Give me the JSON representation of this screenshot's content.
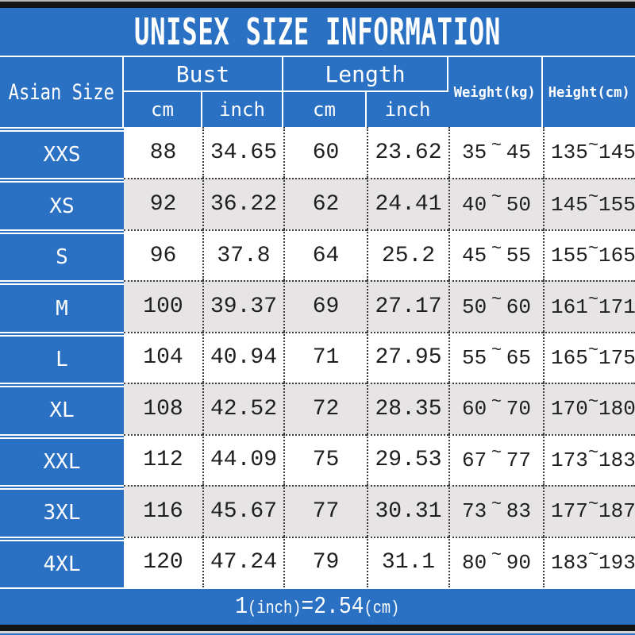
{
  "title": "UNISEX SIZE INFORMATION",
  "header": {
    "size_column": "Asian Size",
    "bust": "Bust",
    "length": "Length",
    "weight": "Weight(kg)",
    "height": "Height(cm)",
    "unit_cm": "cm",
    "unit_inch": "inch"
  },
  "range_separator": "~",
  "rows": [
    {
      "size": "XXS",
      "bust_cm": "88",
      "bust_inch": "34.65",
      "length_cm": "60",
      "length_inch": "23.62",
      "weight_min": "35",
      "weight_max": "45",
      "height_min": "135",
      "height_max": "145"
    },
    {
      "size": "XS",
      "bust_cm": "92",
      "bust_inch": "36.22",
      "length_cm": "62",
      "length_inch": "24.41",
      "weight_min": "40",
      "weight_max": "50",
      "height_min": "145",
      "height_max": "155"
    },
    {
      "size": "S",
      "bust_cm": "96",
      "bust_inch": "37.8",
      "length_cm": "64",
      "length_inch": "25.2",
      "weight_min": "45",
      "weight_max": "55",
      "height_min": "155",
      "height_max": "165"
    },
    {
      "size": "M",
      "bust_cm": "100",
      "bust_inch": "39.37",
      "length_cm": "69",
      "length_inch": "27.17",
      "weight_min": "50",
      "weight_max": "60",
      "height_min": "161",
      "height_max": "171"
    },
    {
      "size": "L",
      "bust_cm": "104",
      "bust_inch": "40.94",
      "length_cm": "71",
      "length_inch": "27.95",
      "weight_min": "55",
      "weight_max": "65",
      "height_min": "165",
      "height_max": "175"
    },
    {
      "size": "XL",
      "bust_cm": "108",
      "bust_inch": "42.52",
      "length_cm": "72",
      "length_inch": "28.35",
      "weight_min": "60",
      "weight_max": "70",
      "height_min": "170",
      "height_max": "180"
    },
    {
      "size": "XXL",
      "bust_cm": "112",
      "bust_inch": "44.09",
      "length_cm": "75",
      "length_inch": "29.53",
      "weight_min": "67",
      "weight_max": "77",
      "height_min": "173",
      "height_max": "183"
    },
    {
      "size": "3XL",
      "bust_cm": "116",
      "bust_inch": "45.67",
      "length_cm": "77",
      "length_inch": "30.31",
      "weight_min": "73",
      "weight_max": "83",
      "height_min": "177",
      "height_max": "187"
    },
    {
      "size": "4XL",
      "bust_cm": "120",
      "bust_inch": "47.24",
      "length_cm": "79",
      "length_inch": "31.1",
      "weight_min": "80",
      "weight_max": "90",
      "height_min": "183",
      "height_max": "193"
    }
  ],
  "footer": {
    "parts": [
      "1",
      "(inch)",
      "=2.54",
      "(cm)"
    ],
    "full_text": "1(inch)=2.54(cm)"
  },
  "colors": {
    "blue": "#2b71c3",
    "row_white": "#ffffff",
    "row_alt": "#e6e4e5",
    "bar_black": "#141414",
    "text_dark": "#1e1e1e",
    "line_white": "#ffffff",
    "dotted_line": "#3c3c3c"
  },
  "chart_data": {
    "type": "table",
    "title": "UNISEX SIZE INFORMATION",
    "columns": [
      "Asian Size",
      "Bust cm",
      "Bust inch",
      "Length cm",
      "Length inch",
      "Weight(kg)",
      "Height(cm)"
    ],
    "rows": [
      [
        "XXS",
        "88",
        "34.65",
        "60",
        "23.62",
        "35~45",
        "135~145"
      ],
      [
        "XS",
        "92",
        "36.22",
        "62",
        "24.41",
        "40~50",
        "145~155"
      ],
      [
        "S",
        "96",
        "37.8",
        "64",
        "25.2",
        "45~55",
        "155~165"
      ],
      [
        "M",
        "100",
        "39.37",
        "69",
        "27.17",
        "50~60",
        "161~171"
      ],
      [
        "L",
        "104",
        "40.94",
        "71",
        "27.95",
        "55~65",
        "165~175"
      ],
      [
        "XL",
        "108",
        "42.52",
        "72",
        "28.35",
        "60~70",
        "170~180"
      ],
      [
        "XXL",
        "112",
        "44.09",
        "75",
        "29.53",
        "67~77",
        "173~183"
      ],
      [
        "3XL",
        "116",
        "45.67",
        "77",
        "30.31",
        "73~83",
        "177~187"
      ],
      [
        "4XL",
        "120",
        "47.24",
        "79",
        "31.1",
        "80~90",
        "183~193"
      ]
    ],
    "note": "1(inch)=2.54(cm)"
  }
}
